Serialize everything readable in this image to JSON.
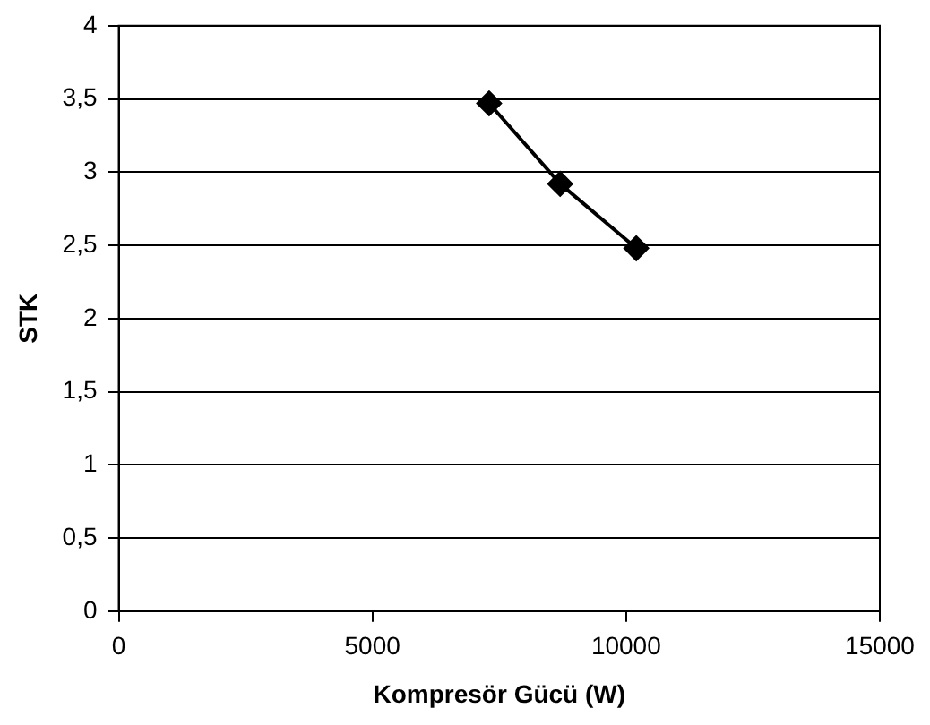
{
  "chart_data": {
    "type": "line",
    "xlabel": "Kompresör Gücü (W)",
    "ylabel": "STK",
    "x": [
      7300,
      8700,
      10200
    ],
    "series": [
      {
        "color": "#000000",
        "values": [
          3.47,
          2.92,
          2.48
        ]
      }
    ],
    "xlim": [
      0,
      15000
    ],
    "xticks": [
      0,
      5000,
      10000,
      15000
    ],
    "ylim": [
      0,
      4
    ],
    "yticks": [
      0,
      {
        "value": 0.5,
        "label": "0,5"
      },
      1,
      {
        "value": 1.5,
        "label": "1,5"
      },
      2,
      {
        "value": 2.5,
        "label": "2,5"
      },
      3,
      {
        "value": 3.5,
        "label": "3,5"
      },
      4
    ],
    "grid": "y",
    "legend": false,
    "marker": "diamond",
    "line_style": "solid"
  }
}
